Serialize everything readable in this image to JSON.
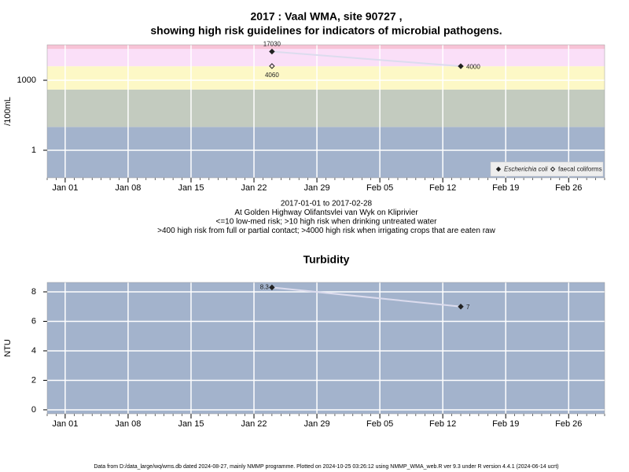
{
  "chart_data": [
    {
      "type": "line",
      "title": [
        "2017 : Vaal WMA, site 90727 ,",
        "showing high risk guidelines for indicators of microbial pathogens."
      ],
      "notes": [
        "2017-01-01 to 2017-02-28",
        "At Golden Highway Olifantsvlei van Wyk on Kliprivier",
        "<=10 low-med risk; >10 high risk when drinking untreated water",
        ">400 high risk from full or partial contact; >4000 high risk when irrigating crops that are eaten raw"
      ],
      "ylabel": "/100mL",
      "log_y": true,
      "ylim": [
        0.066,
        33000
      ],
      "yticks": [
        1,
        1000
      ],
      "xlim": [
        "2016-12-30",
        "2017-03-02"
      ],
      "xticks": [
        {
          "value": "2017-01-01",
          "label": "Jan 01"
        },
        {
          "value": "2017-01-08",
          "label": "Jan 08"
        },
        {
          "value": "2017-01-15",
          "label": "Jan 15"
        },
        {
          "value": "2017-01-22",
          "label": "Jan 22"
        },
        {
          "value": "2017-01-29",
          "label": "Jan 29"
        },
        {
          "value": "2017-02-05",
          "label": "Feb 05"
        },
        {
          "value": "2017-02-12",
          "label": "Feb 12"
        },
        {
          "value": "2017-02-19",
          "label": "Feb 19"
        },
        {
          "value": "2017-02-26",
          "label": "Feb 26"
        }
      ],
      "grid": true,
      "bands": [
        {
          "from": 0.066,
          "to": 10,
          "color": "#a3b3cc"
        },
        {
          "from": 10,
          "to": 400,
          "color": "#c3cbbf"
        },
        {
          "from": 400,
          "to": 4000,
          "color": "#fdf8c6"
        },
        {
          "from": 4000,
          "to": 22000,
          "color": "#fadff8"
        },
        {
          "from": 22000,
          "to": 33000,
          "color": "#f7c3d6"
        }
      ],
      "legend": "bottom-right",
      "series": [
        {
          "name": "Escherichia coli",
          "color": "#222222",
          "line_color": "#dcdcee",
          "marker": "filled",
          "x": [
            "2017-01-24",
            "2017-02-14"
          ],
          "values": [
            17030,
            4000
          ]
        },
        {
          "name": "faecal coliforms",
          "color": "#222222",
          "line_color": "#dcdcee",
          "marker": "open",
          "x": [
            "2017-01-24"
          ],
          "values": [
            4060
          ]
        }
      ]
    },
    {
      "type": "line",
      "title": [
        "Turbidity"
      ],
      "ylabel": "NTU",
      "log_y": false,
      "ylim": [
        -0.27,
        8.64
      ],
      "yticks": [
        0,
        2,
        4,
        6,
        8
      ],
      "xlim": [
        "2016-12-30",
        "2017-03-02"
      ],
      "xticks": [
        {
          "value": "2017-01-01",
          "label": "Jan 01"
        },
        {
          "value": "2017-01-08",
          "label": "Jan 08"
        },
        {
          "value": "2017-01-15",
          "label": "Jan 15"
        },
        {
          "value": "2017-01-22",
          "label": "Jan 22"
        },
        {
          "value": "2017-01-29",
          "label": "Jan 29"
        },
        {
          "value": "2017-02-05",
          "label": "Feb 05"
        },
        {
          "value": "2017-02-12",
          "label": "Feb 12"
        },
        {
          "value": "2017-02-19",
          "label": "Feb 19"
        },
        {
          "value": "2017-02-26",
          "label": "Feb 26"
        }
      ],
      "grid": true,
      "bands": [
        {
          "from": -0.27,
          "to": 8.64,
          "color": "#a3b3cc"
        }
      ],
      "series": [
        {
          "color": "#222222",
          "line_color": "#dcdcee",
          "marker": "filled",
          "x": [
            "2017-01-24",
            "2017-02-14"
          ],
          "values": [
            8.3,
            7
          ]
        }
      ]
    }
  ],
  "footer": "Data from D:/data_large/wq/wms.db dated 2024-08-27, mainly NMMP programme. Plotted on 2024-10-25 03:26:12 using NMMP_WMA_web.R ver 9.3 under R version 4.4.1 (2024-06-14 ucrt)"
}
